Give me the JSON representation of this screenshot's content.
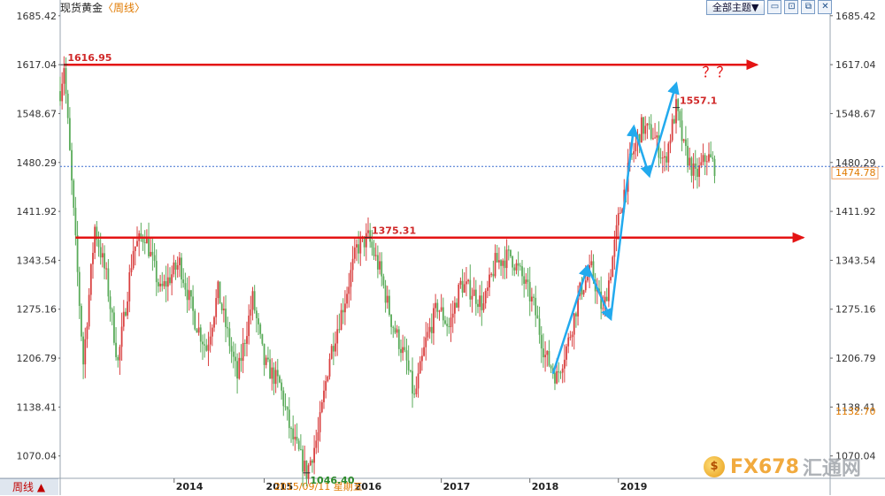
{
  "header": {
    "instrument": "现货黄金",
    "period": "〈周线〉",
    "theme_button": "全部主题▼",
    "tool_icons": [
      "zoom-out-icon",
      "zoom-in-icon",
      "restore-icon",
      "close-icon"
    ],
    "tool_glyphs": [
      "▭",
      "⊡",
      "⧉",
      "✕"
    ]
  },
  "footer": {
    "period_tab": "周线 ▲",
    "date_cursor": "2015/09/11 星期五"
  },
  "watermark": {
    "text": "FX678",
    "cn": "汇通网"
  },
  "chart_data": {
    "type": "candlestick",
    "price_axis_ticks": [
      "1685.42",
      "1617.04",
      "1548.67",
      "1480.29",
      "1411.92",
      "1343.54",
      "1275.16",
      "1206.79",
      "1138.41",
      "1070.04"
    ],
    "ylim": [
      1040,
      1700
    ],
    "year_labels": [
      {
        "label": "2014",
        "t": 0.148
      },
      {
        "label": "2015",
        "t": 0.265
      },
      {
        "label": "2016",
        "t": 0.38
      },
      {
        "label": "2017",
        "t": 0.495
      },
      {
        "label": "2018",
        "t": 0.61
      },
      {
        "label": "2019",
        "t": 0.725
      }
    ],
    "annotations": [
      {
        "text": "1616.95",
        "price": 1616.95,
        "t": 0.005
      },
      {
        "text": "1375.31",
        "price": 1375.31,
        "t": 0.4
      },
      {
        "text": "1046.40",
        "price": 1046.4,
        "t": 0.32
      },
      {
        "text": "1557.1",
        "price": 1557.1,
        "t": 0.8
      }
    ],
    "current_price": {
      "value": "1474.78",
      "price": 1474.78
    },
    "low_marker": {
      "value": "1132.70",
      "price": 1132.7
    },
    "resistance_lines": [
      {
        "price": 1616.95,
        "from_t": 0.005,
        "to_t": 0.905
      },
      {
        "price": 1375.31,
        "from_t": 0.02,
        "to_t": 0.965
      }
    ],
    "question_marks": "？？",
    "colors": {
      "up": "#d94141",
      "down": "#5aab5a",
      "resistance": "#e41414",
      "trend": "#22aaee",
      "current_line": "#3d6fd0",
      "axis": "#555555"
    },
    "key_path": [
      [
        0.0,
        1580
      ],
      [
        0.005,
        1616.95
      ],
      [
        0.015,
        1450
      ],
      [
        0.03,
        1200
      ],
      [
        0.045,
        1390
      ],
      [
        0.06,
        1320
      ],
      [
        0.075,
        1200
      ],
      [
        0.095,
        1360
      ],
      [
        0.11,
        1380
      ],
      [
        0.13,
        1300
      ],
      [
        0.155,
        1340
      ],
      [
        0.175,
        1260
      ],
      [
        0.19,
        1220
      ],
      [
        0.205,
        1300
      ],
      [
        0.23,
        1180
      ],
      [
        0.25,
        1290
      ],
      [
        0.265,
        1200
      ],
      [
        0.285,
        1170
      ],
      [
        0.3,
        1100
      ],
      [
        0.32,
        1046.4
      ],
      [
        0.335,
        1100
      ],
      [
        0.35,
        1210
      ],
      [
        0.37,
        1290
      ],
      [
        0.385,
        1360
      ],
      [
        0.4,
        1375.31
      ],
      [
        0.415,
        1330
      ],
      [
        0.43,
        1260
      ],
      [
        0.45,
        1200
      ],
      [
        0.46,
        1150
      ],
      [
        0.475,
        1230
      ],
      [
        0.49,
        1280
      ],
      [
        0.505,
        1250
      ],
      [
        0.52,
        1310
      ],
      [
        0.535,
        1300
      ],
      [
        0.55,
        1280
      ],
      [
        0.565,
        1340
      ],
      [
        0.585,
        1350
      ],
      [
        0.6,
        1320
      ],
      [
        0.615,
        1280
      ],
      [
        0.63,
        1210
      ],
      [
        0.645,
        1180
      ],
      [
        0.66,
        1230
      ],
      [
        0.675,
        1300
      ],
      [
        0.69,
        1330
      ],
      [
        0.705,
        1270
      ],
      [
        0.715,
        1330
      ],
      [
        0.725,
        1400
      ],
      [
        0.74,
        1480
      ],
      [
        0.755,
        1530
      ],
      [
        0.77,
        1520
      ],
      [
        0.785,
        1480
      ],
      [
        0.8,
        1557.1
      ],
      [
        0.81,
        1500
      ],
      [
        0.825,
        1460
      ],
      [
        0.84,
        1490
      ],
      [
        0.85,
        1474.78
      ]
    ],
    "trend_arrows": [
      {
        "points": [
          [
            0.64,
            1185
          ],
          [
            0.685,
            1335
          ]
        ]
      },
      {
        "points": [
          [
            0.685,
            1335
          ],
          [
            0.715,
            1262
          ]
        ]
      },
      {
        "points": [
          [
            0.715,
            1262
          ],
          [
            0.745,
            1530
          ]
        ]
      },
      {
        "points": [
          [
            0.745,
            1530
          ],
          [
            0.765,
            1462
          ]
        ]
      },
      {
        "points": [
          [
            0.765,
            1462
          ],
          [
            0.8,
            1590
          ]
        ]
      }
    ]
  }
}
